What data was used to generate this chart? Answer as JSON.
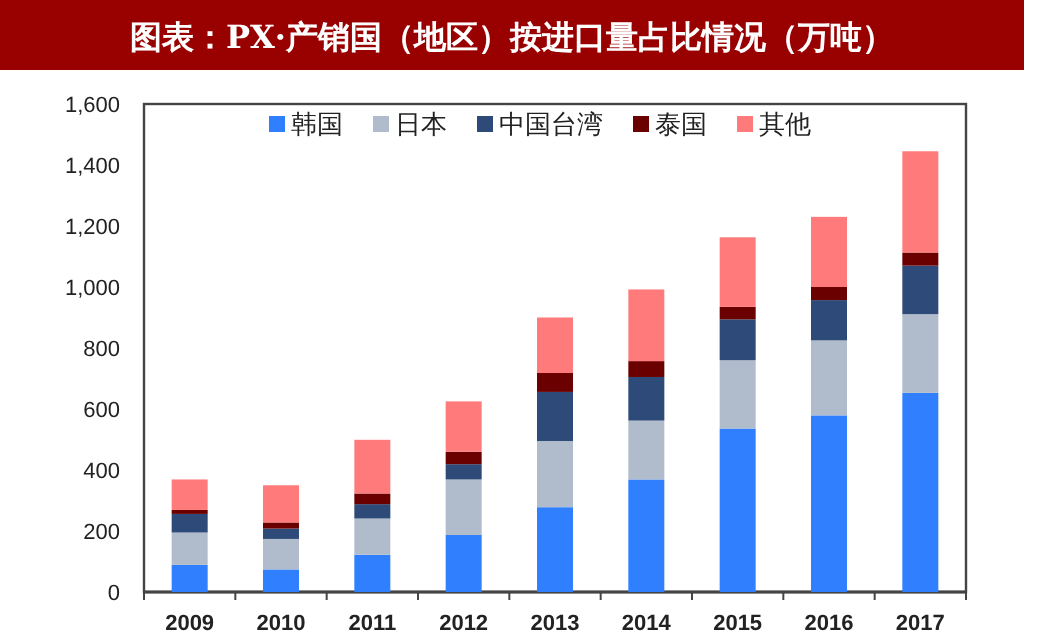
{
  "chart_data": {
    "type": "bar",
    "title": "图表：PX·产销国（地区）按进口量占比情况（万吨）",
    "stacked": true,
    "legend": "top",
    "grid": false,
    "categories": [
      "2009",
      "2010",
      "2011",
      "2012",
      "2013",
      "2014",
      "2015",
      "2016",
      "2017"
    ],
    "ylim": [
      0,
      1600
    ],
    "yticks": [
      {
        "value": 0,
        "label": "0"
      },
      {
        "value": 200,
        "label": "200"
      },
      {
        "value": 400,
        "label": "400"
      },
      {
        "value": 600,
        "label": "600"
      },
      {
        "value": 800,
        "label": "800"
      },
      {
        "value": 1000,
        "label": "1,000"
      },
      {
        "value": 1200,
        "label": "1,200"
      },
      {
        "value": 1400,
        "label": "1,400"
      },
      {
        "value": 1600,
        "label": "1,600"
      }
    ],
    "series": [
      {
        "name": "韩国",
        "color": "#2f7fff",
        "values": [
          89,
          74,
          122,
          187,
          278,
          369,
          536,
          579,
          653
        ]
      },
      {
        "name": "日本",
        "color": "#b0bccb",
        "values": [
          106,
          100,
          119,
          182,
          217,
          193,
          224,
          246,
          258
        ]
      },
      {
        "name": "中国台湾",
        "color": "#2e4a78",
        "values": [
          61,
          34,
          47,
          50,
          161,
          143,
          134,
          132,
          159
        ]
      },
      {
        "name": "泰国",
        "color": "#6b0000",
        "values": [
          13,
          20,
          35,
          41,
          62,
          52,
          41,
          43,
          43
        ]
      },
      {
        "name": "其他",
        "color": "#ff7b7b",
        "values": [
          100,
          122,
          176,
          165,
          182,
          235,
          228,
          230,
          332
        ]
      }
    ]
  }
}
